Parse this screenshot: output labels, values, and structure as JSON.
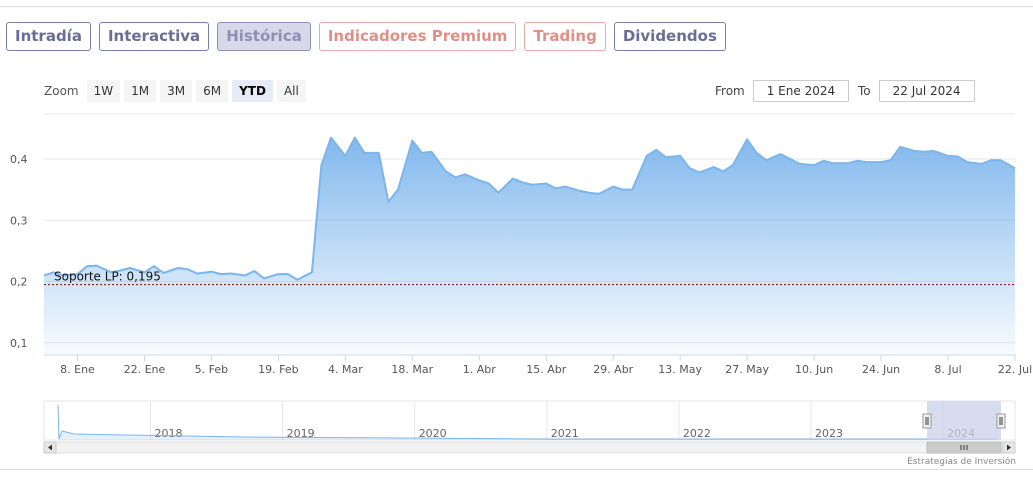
{
  "tabs": [
    {
      "label": "Intradía",
      "state": "normal"
    },
    {
      "label": "Interactiva",
      "state": "normal"
    },
    {
      "label": "Histórica",
      "state": "active"
    },
    {
      "label": "Indicadores Premium",
      "state": "premium"
    },
    {
      "label": "Trading",
      "state": "premium"
    },
    {
      "label": "Dividendos",
      "state": "normal"
    }
  ],
  "zoom": {
    "label": "Zoom",
    "buttons": [
      "1W",
      "1M",
      "3M",
      "6M",
      "YTD",
      "All"
    ],
    "selected": "YTD"
  },
  "range": {
    "from_label": "From",
    "from_value": "1 Ene 2024",
    "to_label": "To",
    "to_value": "22 Jul 2024"
  },
  "credit": "Estrategias de Inversión",
  "colors": {
    "series": "#7cb5ec",
    "support_line": "#8b0000",
    "tab_border": "#7b7fa6",
    "tab_premium": "#e08f86",
    "navigator_mask": "#c9d2e8"
  },
  "chart_data": {
    "type": "area",
    "title": "",
    "xlabel": "",
    "ylabel": "",
    "x_range": [
      "2024-01-01",
      "2024-07-22"
    ],
    "ylim": [
      0.08,
      0.48
    ],
    "y_ticks": [
      0.1,
      0.2,
      0.3,
      0.4
    ],
    "y_tick_labels": [
      "0,1",
      "0,2",
      "0,3",
      "0,4"
    ],
    "x_ticks": [
      "2024-01-08",
      "2024-01-22",
      "2024-02-05",
      "2024-02-19",
      "2024-03-04",
      "2024-03-18",
      "2024-04-01",
      "2024-04-15",
      "2024-04-29",
      "2024-05-13",
      "2024-05-27",
      "2024-06-10",
      "2024-06-24",
      "2024-07-08",
      "2024-07-22"
    ],
    "x_tick_labels": [
      "8. Ene",
      "22. Ene",
      "5. Feb",
      "19. Feb",
      "4. Mar",
      "18. Mar",
      "1. Abr",
      "15. Abr",
      "29. Abr",
      "13. May",
      "27. May",
      "10. Jun",
      "24. Jun",
      "8. Jul",
      "22. Jul"
    ],
    "grid": "horizontal",
    "series": [
      {
        "values": [
          [
            "2024-01-01",
            0.21
          ],
          [
            "2024-01-03",
            0.215
          ],
          [
            "2024-01-05",
            0.21
          ],
          [
            "2024-01-08",
            0.212
          ],
          [
            "2024-01-10",
            0.225
          ],
          [
            "2024-01-12",
            0.226
          ],
          [
            "2024-01-15",
            0.215
          ],
          [
            "2024-01-17",
            0.218
          ],
          [
            "2024-01-19",
            0.222
          ],
          [
            "2024-01-22",
            0.215
          ],
          [
            "2024-01-24",
            0.225
          ],
          [
            "2024-01-26",
            0.214
          ],
          [
            "2024-01-29",
            0.222
          ],
          [
            "2024-01-31",
            0.22
          ],
          [
            "2024-02-02",
            0.213
          ],
          [
            "2024-02-05",
            0.216
          ],
          [
            "2024-02-07",
            0.212
          ],
          [
            "2024-02-09",
            0.213
          ],
          [
            "2024-02-12",
            0.21
          ],
          [
            "2024-02-14",
            0.217
          ],
          [
            "2024-02-16",
            0.205
          ],
          [
            "2024-02-19",
            0.212
          ],
          [
            "2024-02-21",
            0.212
          ],
          [
            "2024-02-23",
            0.203
          ],
          [
            "2024-02-26",
            0.215
          ],
          [
            "2024-02-28",
            0.39
          ],
          [
            "2024-03-01",
            0.435
          ],
          [
            "2024-03-04",
            0.405
          ],
          [
            "2024-03-06",
            0.435
          ],
          [
            "2024-03-08",
            0.41
          ],
          [
            "2024-03-11",
            0.41
          ],
          [
            "2024-03-13",
            0.33
          ],
          [
            "2024-03-15",
            0.35
          ],
          [
            "2024-03-18",
            0.43
          ],
          [
            "2024-03-20",
            0.41
          ],
          [
            "2024-03-22",
            0.412
          ],
          [
            "2024-03-25",
            0.38
          ],
          [
            "2024-03-27",
            0.37
          ],
          [
            "2024-03-29",
            0.375
          ],
          [
            "2024-04-01",
            0.365
          ],
          [
            "2024-04-03",
            0.36
          ],
          [
            "2024-04-05",
            0.345
          ],
          [
            "2024-04-08",
            0.368
          ],
          [
            "2024-04-10",
            0.362
          ],
          [
            "2024-04-12",
            0.358
          ],
          [
            "2024-04-15",
            0.36
          ],
          [
            "2024-04-17",
            0.352
          ],
          [
            "2024-04-19",
            0.355
          ],
          [
            "2024-04-22",
            0.348
          ],
          [
            "2024-04-24",
            0.345
          ],
          [
            "2024-04-26",
            0.343
          ],
          [
            "2024-04-29",
            0.355
          ],
          [
            "2024-05-01",
            0.35
          ],
          [
            "2024-05-03",
            0.35
          ],
          [
            "2024-05-06",
            0.405
          ],
          [
            "2024-05-08",
            0.415
          ],
          [
            "2024-05-10",
            0.403
          ],
          [
            "2024-05-13",
            0.405
          ],
          [
            "2024-05-15",
            0.385
          ],
          [
            "2024-05-17",
            0.378
          ],
          [
            "2024-05-20",
            0.387
          ],
          [
            "2024-05-22",
            0.38
          ],
          [
            "2024-05-24",
            0.39
          ],
          [
            "2024-05-27",
            0.432
          ],
          [
            "2024-05-29",
            0.41
          ],
          [
            "2024-05-31",
            0.398
          ],
          [
            "2024-06-03",
            0.408
          ],
          [
            "2024-06-05",
            0.4
          ],
          [
            "2024-06-07",
            0.392
          ],
          [
            "2024-06-10",
            0.39
          ],
          [
            "2024-06-12",
            0.397
          ],
          [
            "2024-06-14",
            0.393
          ],
          [
            "2024-06-17",
            0.393
          ],
          [
            "2024-06-19",
            0.397
          ],
          [
            "2024-06-21",
            0.395
          ],
          [
            "2024-06-24",
            0.395
          ],
          [
            "2024-06-26",
            0.398
          ],
          [
            "2024-06-28",
            0.42
          ],
          [
            "2024-07-01",
            0.413
          ],
          [
            "2024-07-03",
            0.412
          ],
          [
            "2024-07-05",
            0.413
          ],
          [
            "2024-07-08",
            0.405
          ],
          [
            "2024-07-10",
            0.404
          ],
          [
            "2024-07-12",
            0.395
          ],
          [
            "2024-07-15",
            0.392
          ],
          [
            "2024-07-17",
            0.398
          ],
          [
            "2024-07-19",
            0.398
          ],
          [
            "2024-07-22",
            0.385
          ]
        ]
      }
    ],
    "plot_lines": [
      {
        "value": 0.195,
        "label": "Soporte LP: 0,195",
        "style": "dashed"
      }
    ],
    "navigator": {
      "x_tick_labels": [
        "2018",
        "2019",
        "2020",
        "2021",
        "2022",
        "2023",
        "2024"
      ],
      "selected_range": [
        "2024-01-01",
        "2024-07-22"
      ]
    }
  }
}
